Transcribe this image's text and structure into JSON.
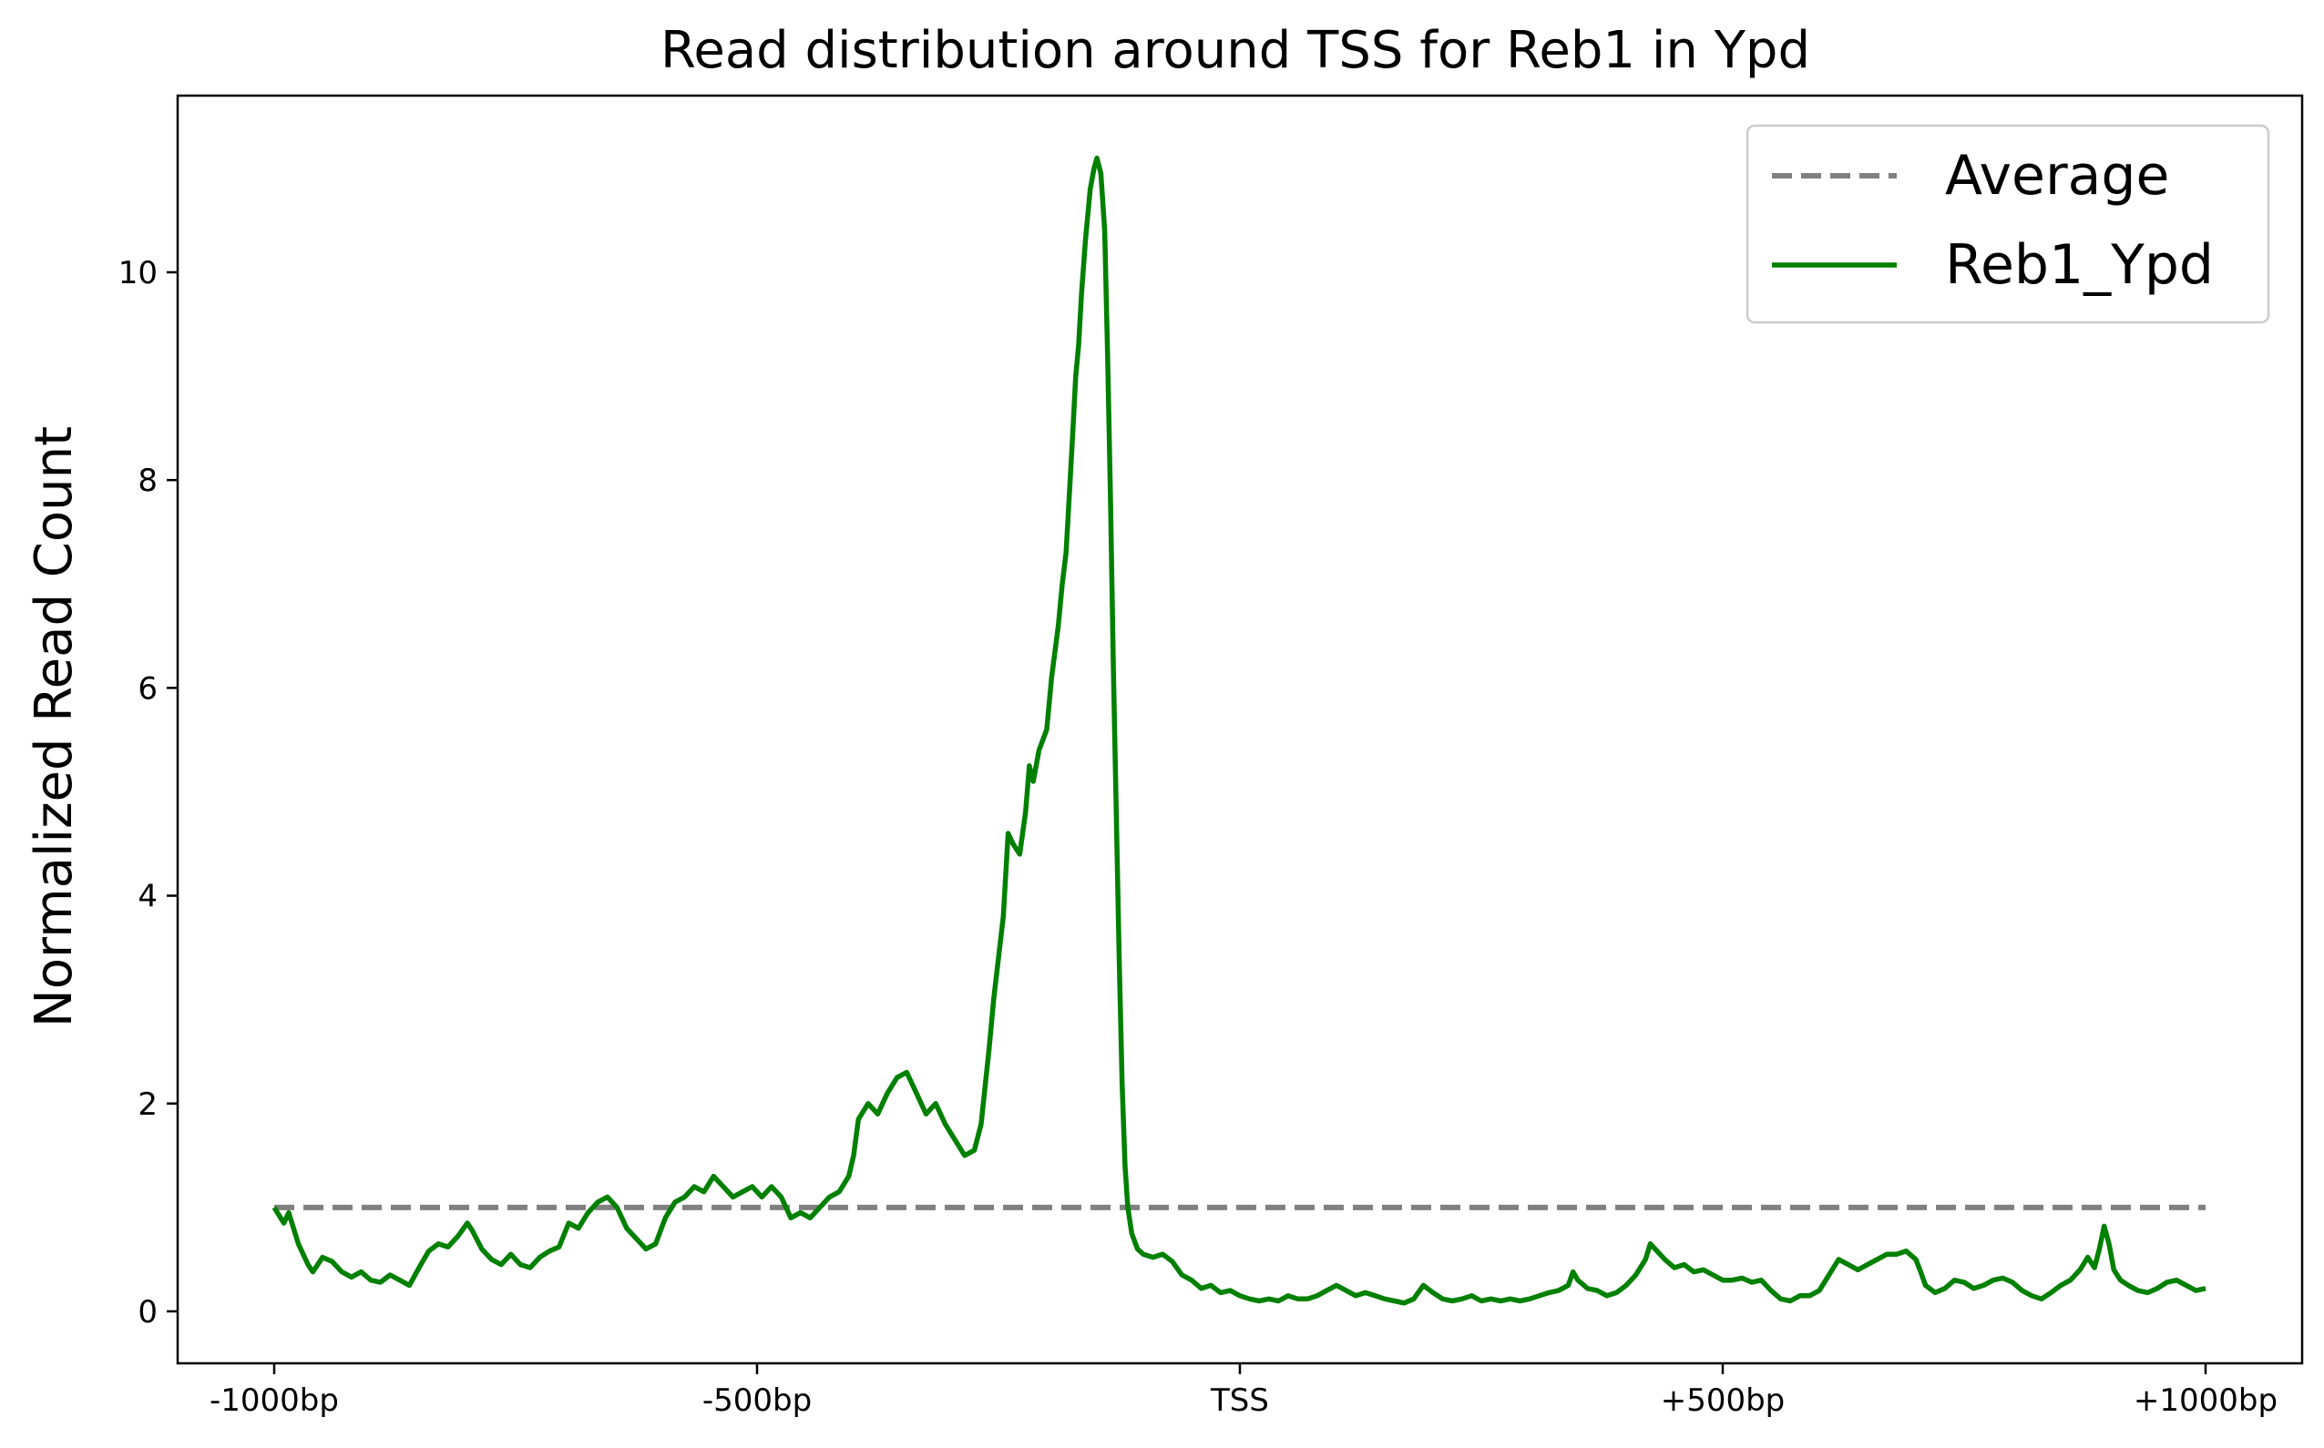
{
  "chart_data": {
    "type": "line",
    "title": "Read distribution around TSS for Reb1 in Ypd",
    "xlabel": "",
    "ylabel": "Normalized Read Count",
    "xlim": [
      -1100,
      1100
    ],
    "ylim": [
      -0.5,
      11.7
    ],
    "x_ticks": [
      {
        "value": -1000,
        "label": "-1000bp"
      },
      {
        "value": -500,
        "label": "-500bp"
      },
      {
        "value": 0,
        "label": "TSS"
      },
      {
        "value": 500,
        "label": "+500bp"
      },
      {
        "value": 1000,
        "label": "+1000bp"
      }
    ],
    "y_ticks": [
      {
        "value": 0,
        "label": "0"
      },
      {
        "value": 2,
        "label": "2"
      },
      {
        "value": 4,
        "label": "4"
      },
      {
        "value": 6,
        "label": "6"
      },
      {
        "value": 8,
        "label": "8"
      },
      {
        "value": 10,
        "label": "10"
      }
    ],
    "grid": false,
    "legend_position": "top-right",
    "series": [
      {
        "name": "Average",
        "style": "dashed",
        "color": "#808080",
        "points": [
          [
            -1000,
            1.0
          ],
          [
            1000,
            1.0
          ]
        ]
      },
      {
        "name": "Reb1_Ypd",
        "style": "solid",
        "color": "#008000",
        "points": [
          [
            -1000,
            1.0
          ],
          [
            -990,
            0.85
          ],
          [
            -985,
            0.95
          ],
          [
            -975,
            0.65
          ],
          [
            -965,
            0.45
          ],
          [
            -960,
            0.38
          ],
          [
            -950,
            0.52
          ],
          [
            -940,
            0.48
          ],
          [
            -930,
            0.38
          ],
          [
            -920,
            0.33
          ],
          [
            -910,
            0.38
          ],
          [
            -900,
            0.3
          ],
          [
            -890,
            0.28
          ],
          [
            -880,
            0.35
          ],
          [
            -870,
            0.3
          ],
          [
            -860,
            0.25
          ],
          [
            -850,
            0.42
          ],
          [
            -840,
            0.58
          ],
          [
            -830,
            0.65
          ],
          [
            -820,
            0.62
          ],
          [
            -810,
            0.72
          ],
          [
            -800,
            0.85
          ],
          [
            -795,
            0.78
          ],
          [
            -785,
            0.6
          ],
          [
            -775,
            0.5
          ],
          [
            -765,
            0.45
          ],
          [
            -755,
            0.55
          ],
          [
            -745,
            0.45
          ],
          [
            -735,
            0.42
          ],
          [
            -725,
            0.52
          ],
          [
            -715,
            0.58
          ],
          [
            -705,
            0.62
          ],
          [
            -695,
            0.85
          ],
          [
            -685,
            0.8
          ],
          [
            -675,
            0.95
          ],
          [
            -665,
            1.05
          ],
          [
            -655,
            1.1
          ],
          [
            -645,
            1.0
          ],
          [
            -635,
            0.8
          ],
          [
            -625,
            0.7
          ],
          [
            -615,
            0.6
          ],
          [
            -605,
            0.65
          ],
          [
            -595,
            0.9
          ],
          [
            -585,
            1.05
          ],
          [
            -575,
            1.1
          ],
          [
            -565,
            1.2
          ],
          [
            -555,
            1.15
          ],
          [
            -545,
            1.3
          ],
          [
            -535,
            1.2
          ],
          [
            -525,
            1.1
          ],
          [
            -515,
            1.15
          ],
          [
            -505,
            1.2
          ],
          [
            -495,
            1.1
          ],
          [
            -485,
            1.2
          ],
          [
            -475,
            1.1
          ],
          [
            -465,
            0.9
          ],
          [
            -455,
            0.95
          ],
          [
            -445,
            0.9
          ],
          [
            -435,
            1.0
          ],
          [
            -425,
            1.1
          ],
          [
            -415,
            1.15
          ],
          [
            -405,
            1.3
          ],
          [
            -400,
            1.5
          ],
          [
            -395,
            1.85
          ],
          [
            -385,
            2.0
          ],
          [
            -375,
            1.9
          ],
          [
            -365,
            2.1
          ],
          [
            -355,
            2.25
          ],
          [
            -345,
            2.3
          ],
          [
            -335,
            2.1
          ],
          [
            -325,
            1.9
          ],
          [
            -315,
            2.0
          ],
          [
            -305,
            1.8
          ],
          [
            -295,
            1.65
          ],
          [
            -285,
            1.5
          ],
          [
            -275,
            1.55
          ],
          [
            -268,
            1.8
          ],
          [
            -260,
            2.5
          ],
          [
            -255,
            3.0
          ],
          [
            -250,
            3.4
          ],
          [
            -245,
            3.8
          ],
          [
            -240,
            4.6
          ],
          [
            -235,
            4.5
          ],
          [
            -228,
            4.4
          ],
          [
            -222,
            4.8
          ],
          [
            -218,
            5.25
          ],
          [
            -214,
            5.1
          ],
          [
            -208,
            5.4
          ],
          [
            -200,
            5.6
          ],
          [
            -195,
            6.1
          ],
          [
            -188,
            6.6
          ],
          [
            -184,
            7.0
          ],
          [
            -180,
            7.3
          ],
          [
            -177,
            7.8
          ],
          [
            -174,
            8.3
          ],
          [
            -170,
            9.0
          ],
          [
            -167,
            9.3
          ],
          [
            -164,
            9.8
          ],
          [
            -160,
            10.3
          ],
          [
            -155,
            10.8
          ],
          [
            -151,
            11.0
          ],
          [
            -148,
            11.1
          ],
          [
            -144,
            10.95
          ],
          [
            -140,
            10.4
          ],
          [
            -137,
            9.2
          ],
          [
            -134,
            7.8
          ],
          [
            -131,
            6.2
          ],
          [
            -128,
            4.8
          ],
          [
            -125,
            3.4
          ],
          [
            -122,
            2.2
          ],
          [
            -119,
            1.4
          ],
          [
            -116,
            1.0
          ],
          [
            -112,
            0.75
          ],
          [
            -106,
            0.6
          ],
          [
            -100,
            0.55
          ],
          [
            -90,
            0.52
          ],
          [
            -80,
            0.55
          ],
          [
            -70,
            0.48
          ],
          [
            -60,
            0.35
          ],
          [
            -50,
            0.3
          ],
          [
            -40,
            0.22
          ],
          [
            -30,
            0.25
          ],
          [
            -20,
            0.18
          ],
          [
            -10,
            0.2
          ],
          [
            0,
            0.15
          ],
          [
            10,
            0.12
          ],
          [
            20,
            0.1
          ],
          [
            30,
            0.12
          ],
          [
            40,
            0.1
          ],
          [
            50,
            0.15
          ],
          [
            60,
            0.12
          ],
          [
            70,
            0.12
          ],
          [
            80,
            0.15
          ],
          [
            90,
            0.2
          ],
          [
            100,
            0.25
          ],
          [
            110,
            0.2
          ],
          [
            120,
            0.15
          ],
          [
            130,
            0.18
          ],
          [
            140,
            0.15
          ],
          [
            150,
            0.12
          ],
          [
            160,
            0.1
          ],
          [
            170,
            0.08
          ],
          [
            180,
            0.12
          ],
          [
            190,
            0.25
          ],
          [
            200,
            0.18
          ],
          [
            210,
            0.12
          ],
          [
            220,
            0.1
          ],
          [
            230,
            0.12
          ],
          [
            240,
            0.15
          ],
          [
            250,
            0.1
          ],
          [
            260,
            0.12
          ],
          [
            270,
            0.1
          ],
          [
            280,
            0.12
          ],
          [
            290,
            0.1
          ],
          [
            300,
            0.12
          ],
          [
            310,
            0.15
          ],
          [
            320,
            0.18
          ],
          [
            330,
            0.2
          ],
          [
            340,
            0.25
          ],
          [
            345,
            0.38
          ],
          [
            350,
            0.3
          ],
          [
            360,
            0.22
          ],
          [
            370,
            0.2
          ],
          [
            380,
            0.15
          ],
          [
            390,
            0.18
          ],
          [
            400,
            0.25
          ],
          [
            410,
            0.35
          ],
          [
            420,
            0.5
          ],
          [
            425,
            0.65
          ],
          [
            430,
            0.6
          ],
          [
            440,
            0.5
          ],
          [
            450,
            0.42
          ],
          [
            460,
            0.45
          ],
          [
            470,
            0.38
          ],
          [
            480,
            0.4
          ],
          [
            490,
            0.35
          ],
          [
            500,
            0.3
          ],
          [
            510,
            0.3
          ],
          [
            520,
            0.32
          ],
          [
            530,
            0.28
          ],
          [
            540,
            0.3
          ],
          [
            550,
            0.2
          ],
          [
            560,
            0.12
          ],
          [
            570,
            0.1
          ],
          [
            580,
            0.15
          ],
          [
            590,
            0.15
          ],
          [
            600,
            0.2
          ],
          [
            610,
            0.35
          ],
          [
            620,
            0.5
          ],
          [
            630,
            0.45
          ],
          [
            640,
            0.4
          ],
          [
            650,
            0.45
          ],
          [
            660,
            0.5
          ],
          [
            670,
            0.55
          ],
          [
            680,
            0.55
          ],
          [
            690,
            0.58
          ],
          [
            700,
            0.5
          ],
          [
            705,
            0.38
          ],
          [
            710,
            0.25
          ],
          [
            720,
            0.18
          ],
          [
            730,
            0.22
          ],
          [
            740,
            0.3
          ],
          [
            750,
            0.28
          ],
          [
            760,
            0.22
          ],
          [
            770,
            0.25
          ],
          [
            780,
            0.3
          ],
          [
            790,
            0.32
          ],
          [
            800,
            0.28
          ],
          [
            810,
            0.2
          ],
          [
            820,
            0.15
          ],
          [
            830,
            0.12
          ],
          [
            840,
            0.18
          ],
          [
            850,
            0.25
          ],
          [
            860,
            0.3
          ],
          [
            870,
            0.4
          ],
          [
            878,
            0.52
          ],
          [
            885,
            0.42
          ],
          [
            890,
            0.6
          ],
          [
            895,
            0.82
          ],
          [
            900,
            0.65
          ],
          [
            905,
            0.4
          ],
          [
            912,
            0.3
          ],
          [
            920,
            0.25
          ],
          [
            930,
            0.2
          ],
          [
            940,
            0.18
          ],
          [
            950,
            0.22
          ],
          [
            960,
            0.28
          ],
          [
            970,
            0.3
          ],
          [
            980,
            0.25
          ],
          [
            990,
            0.2
          ],
          [
            1000,
            0.22
          ]
        ]
      }
    ]
  }
}
